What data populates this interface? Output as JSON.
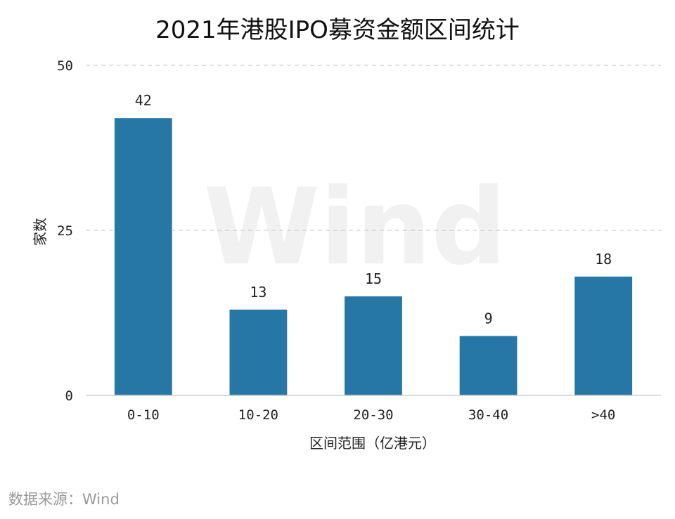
{
  "chart_data": {
    "type": "bar",
    "title": "2021年港股IPO募资金额区间统计",
    "categories": [
      "0-10",
      "10-20",
      "20-30",
      "30-40",
      ">40"
    ],
    "values": [
      42,
      13,
      15,
      9,
      18
    ],
    "xlabel": "区间范围（亿港元）",
    "ylabel": "家数",
    "ylim": [
      0,
      50
    ],
    "yticks": [
      0,
      25,
      50
    ],
    "bar_color": "#2677a6",
    "grid": true
  },
  "watermark": "Wind",
  "source": "数据来源：Wind"
}
